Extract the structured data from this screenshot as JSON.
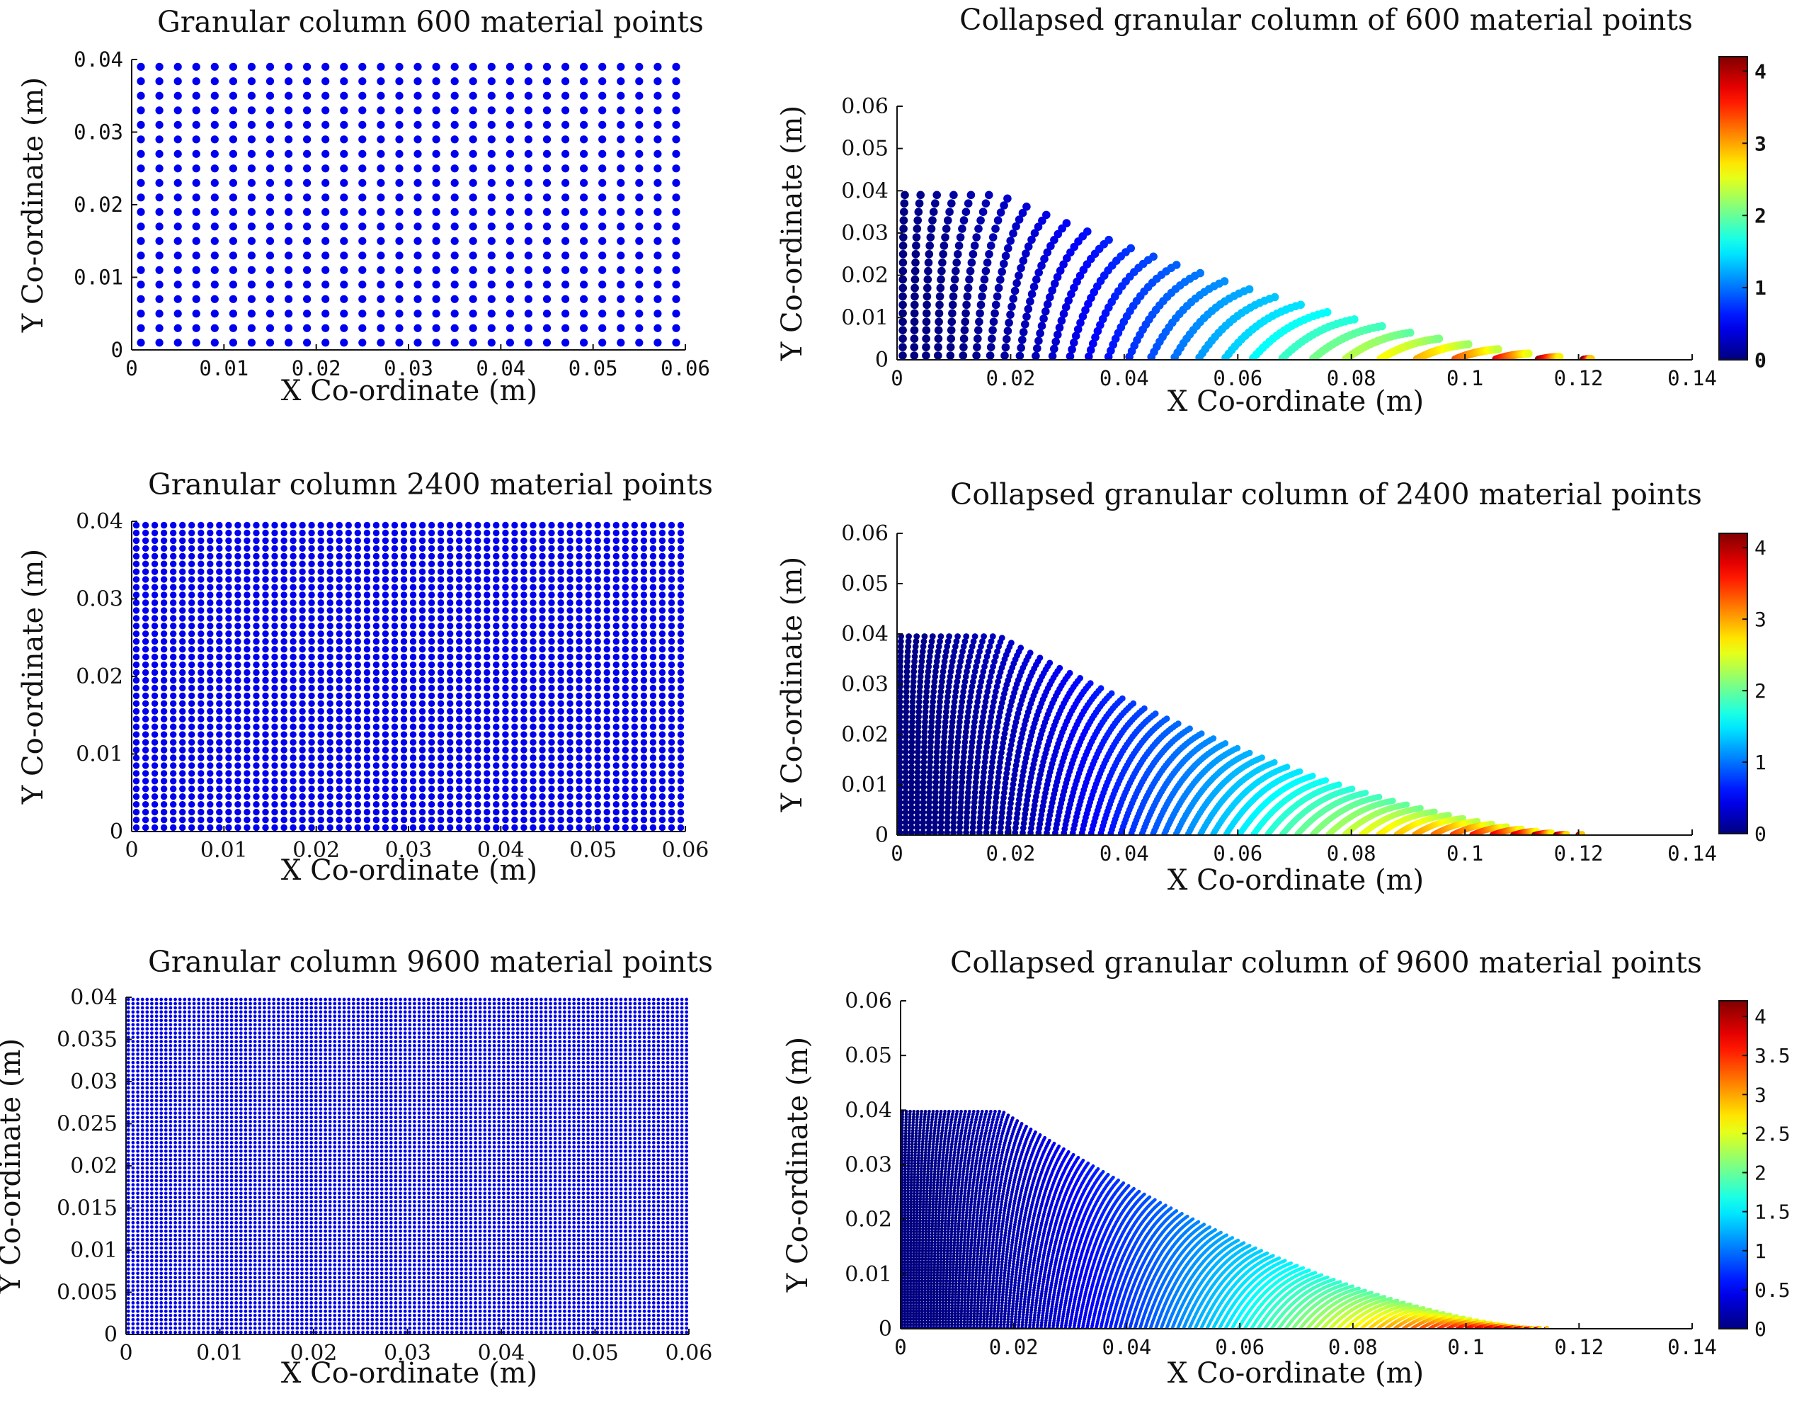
{
  "chart_data": [
    {
      "id": "p600",
      "type": "scatter",
      "title": "Granular column 600 material points",
      "xlabel": "X Co-ordinate (m)",
      "ylabel": "Y Co-ordinate (m)",
      "xlim": [
        0,
        0.06
      ],
      "ylim": [
        0,
        0.04
      ],
      "xticks": [
        0,
        0.01,
        0.02,
        0.03,
        0.04,
        0.05,
        0.06
      ],
      "xtick_labels": [
        "0",
        "0.01",
        "0.02",
        "0.03",
        "0.04",
        "0.05",
        "0.06"
      ],
      "yticks": [
        0,
        0.01,
        0.02,
        0.03,
        0.04
      ],
      "ytick_labels": [
        "0",
        "0.01",
        "0.02",
        "0.03",
        "0.04"
      ],
      "grid": false,
      "color": "#0000ee",
      "points": {
        "pattern": "regular-grid",
        "columns": 30,
        "rows": 20,
        "x_first": 0.001,
        "x_step": 0.002,
        "y_first": 0.001,
        "y_step": 0.002
      }
    },
    {
      "id": "p2400",
      "type": "scatter",
      "title": "Granular column 2400 material points",
      "xlabel": "X Co-ordinate (m)",
      "ylabel": "Y Co-ordinate (m)",
      "xlim": [
        0,
        0.06
      ],
      "ylim": [
        0,
        0.04
      ],
      "xticks": [
        0,
        0.01,
        0.02,
        0.03,
        0.04,
        0.05,
        0.06
      ],
      "xtick_labels": [
        "0",
        "0.01",
        "0.02",
        "0.03",
        "0.04",
        "0.05",
        "0.06"
      ],
      "yticks": [
        0,
        0.01,
        0.02,
        0.03,
        0.04
      ],
      "ytick_labels": [
        "0",
        "0.01",
        "0.02",
        "0.03",
        "0.04"
      ],
      "grid": false,
      "color": "#0000ee",
      "points": {
        "pattern": "regular-grid",
        "columns": 60,
        "rows": 40,
        "x_first": 0.0005,
        "x_step": 0.001,
        "y_first": 0.0005,
        "y_step": 0.001
      }
    },
    {
      "id": "p9600",
      "type": "scatter",
      "title": "Granular column 9600 material points",
      "xlabel": "X Co-ordinate (m)",
      "ylabel": "Y Co-ordinate (m)",
      "xlim": [
        0,
        0.06
      ],
      "ylim": [
        0,
        0.04
      ],
      "xticks": [
        0,
        0.01,
        0.02,
        0.03,
        0.04,
        0.05,
        0.06
      ],
      "xtick_labels": [
        "0",
        "0.01",
        "0.02",
        "0.03",
        "0.04",
        "0.05",
        "0.06"
      ],
      "yticks": [
        0,
        0.005,
        0.01,
        0.015,
        0.02,
        0.025,
        0.03,
        0.035,
        0.04
      ],
      "ytick_labels": [
        "0",
        "0.005",
        "0.01",
        "0.015",
        "0.02",
        "0.025",
        "0.03",
        "0.035",
        "0.04"
      ],
      "grid": false,
      "color": "#0000ee",
      "points": {
        "pattern": "regular-grid",
        "columns": 120,
        "rows": 80,
        "x_first": 0.00025,
        "x_step": 0.0005,
        "y_first": 0.00025,
        "y_step": 0.0005
      }
    },
    {
      "id": "c600",
      "type": "scatter",
      "title": "Collapsed granular column of 600 material points",
      "xlabel": "X Co-ordinate (m)",
      "ylabel": "Y Co-ordinate (m)",
      "xlim": [
        0,
        0.14
      ],
      "ylim": [
        0,
        0.06
      ],
      "xticks": [
        0,
        0.02,
        0.04,
        0.06,
        0.08,
        0.1,
        0.12,
        0.14
      ],
      "xtick_labels": [
        "0",
        "0.02",
        "0.04",
        "0.06",
        "0.08",
        "0.1",
        "0.12",
        "0.14"
      ],
      "yticks": [
        0,
        0.01,
        0.02,
        0.03,
        0.04,
        0.05,
        0.06
      ],
      "ytick_labels": [
        "0",
        "0.01",
        "0.02",
        "0.03",
        "0.04",
        "0.05",
        "0.06"
      ],
      "grid": false,
      "colormap": "jet",
      "clim": [
        0,
        4.2
      ],
      "colorbar_ticks": [
        0,
        1,
        2,
        3,
        4
      ],
      "colorbar_tick_labels": [
        "0",
        "1",
        "2",
        "3",
        "4"
      ],
      "initial_grid": {
        "columns": 30,
        "rows": 20
      },
      "runout_x": 0.125,
      "front_height": 0.04
    },
    {
      "id": "c2400",
      "type": "scatter",
      "title": "Collapsed granular column of 2400 material points",
      "xlabel": "X Co-ordinate (m)",
      "ylabel": "Y Co-ordinate (m)",
      "xlim": [
        0,
        0.14
      ],
      "ylim": [
        0,
        0.06
      ],
      "xticks": [
        0,
        0.02,
        0.04,
        0.06,
        0.08,
        0.1,
        0.12,
        0.14
      ],
      "xtick_labels": [
        "0",
        "0.02",
        "0.04",
        "0.06",
        "0.08",
        "0.1",
        "0.12",
        "0.14"
      ],
      "yticks": [
        0,
        0.01,
        0.02,
        0.03,
        0.04,
        0.05,
        0.06
      ],
      "ytick_labels": [
        "0",
        "0.01",
        "0.02",
        "0.03",
        "0.04",
        "0.05",
        "0.06"
      ],
      "grid": false,
      "colormap": "jet",
      "clim": [
        0,
        4.2
      ],
      "colorbar_ticks": [
        0,
        1,
        2,
        3,
        4
      ],
      "colorbar_tick_labels": [
        "0",
        "1",
        "2",
        "3",
        "4"
      ],
      "initial_grid": {
        "columns": 60,
        "rows": 40
      },
      "runout_x": 0.122,
      "front_height": 0.04
    },
    {
      "id": "c9600",
      "type": "scatter",
      "title": "Collapsed granular column of 9600 material points",
      "xlabel": "X Co-ordinate (m)",
      "ylabel": "Y Co-ordinate (m)",
      "xlim": [
        0,
        0.14
      ],
      "ylim": [
        0,
        0.06
      ],
      "xticks": [
        0,
        0.02,
        0.04,
        0.06,
        0.08,
        0.1,
        0.12,
        0.14
      ],
      "xtick_labels": [
        "0",
        "0.02",
        "0.04",
        "0.06",
        "0.08",
        "0.1",
        "0.12",
        "0.14"
      ],
      "yticks": [
        0,
        0.01,
        0.02,
        0.03,
        0.04,
        0.05,
        0.06
      ],
      "ytick_labels": [
        "0",
        "0.01",
        "0.02",
        "0.03",
        "0.04",
        "0.05",
        "0.06"
      ],
      "grid": false,
      "colormap": "jet",
      "clim": [
        0,
        4.2
      ],
      "colorbar_ticks": [
        0,
        0.5,
        1,
        1.5,
        2,
        2.5,
        3,
        3.5,
        4
      ],
      "colorbar_tick_labels": [
        "0",
        "0.5",
        "1",
        "1.5",
        "2",
        "2.5",
        "3",
        "3.5",
        "4"
      ],
      "initial_grid": {
        "columns": 120,
        "rows": 80
      },
      "runout_x": 0.115,
      "front_height": 0.04
    }
  ]
}
